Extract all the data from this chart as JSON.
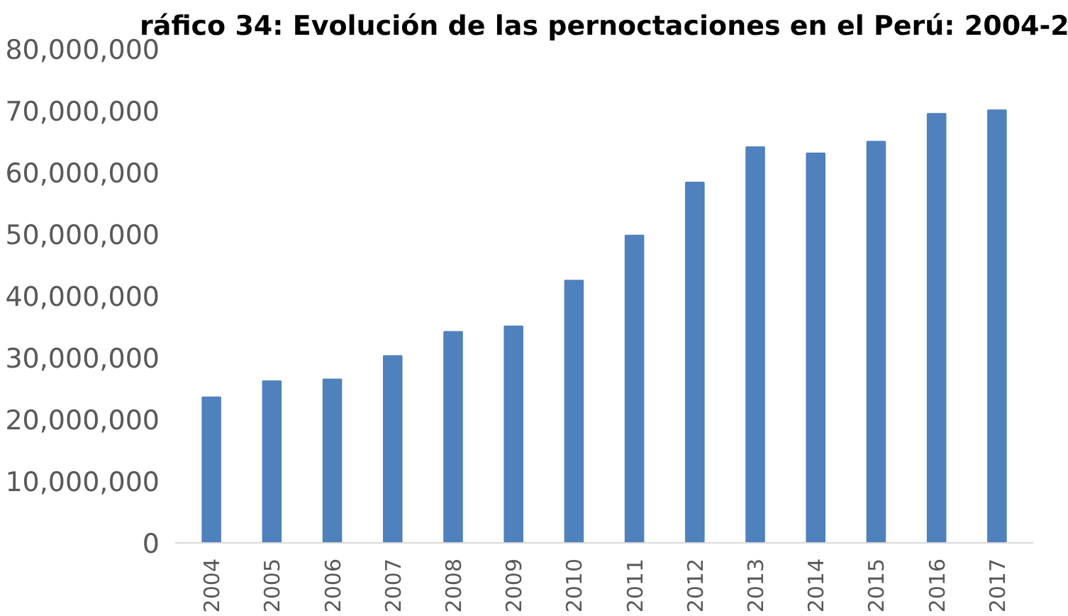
{
  "chart_data": {
    "type": "bar",
    "title": "ráfico 34: Evolución de las pernoctaciones en el Perú: 2004-2",
    "categories": [
      "2004",
      "2005",
      "2006",
      "2007",
      "2008",
      "2009",
      "2010",
      "2011",
      "2012",
      "2013",
      "2014",
      "2015",
      "2016",
      "2017"
    ],
    "values": [
      23600000,
      26200000,
      26500000,
      30300000,
      34200000,
      35100000,
      42500000,
      49800000,
      58400000,
      64100000,
      63100000,
      65000000,
      69500000,
      70100000
    ],
    "color": "#4f81bd",
    "ylim": [
      0,
      80000000
    ],
    "yticks": [
      {
        "value": 0,
        "label": "0"
      },
      {
        "value": 10000000,
        "label": "10,000,000"
      },
      {
        "value": 20000000,
        "label": "20,000,000"
      },
      {
        "value": 30000000,
        "label": "30,000,000"
      },
      {
        "value": 40000000,
        "label": "40,000,000"
      },
      {
        "value": 50000000,
        "label": "50,000,000"
      },
      {
        "value": 60000000,
        "label": "60,000,000"
      },
      {
        "value": 70000000,
        "label": "70,000,000"
      },
      {
        "value": 80000000,
        "label": "80,000,000"
      }
    ],
    "grid": false
  }
}
